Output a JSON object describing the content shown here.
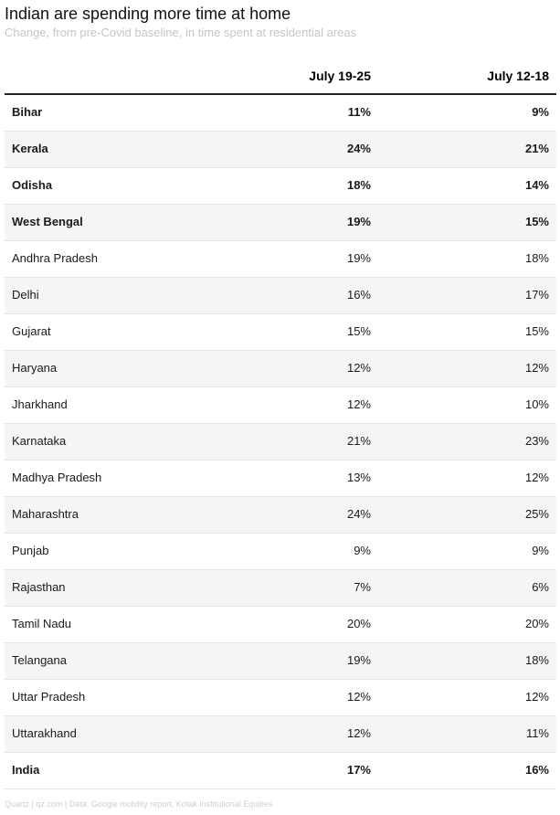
{
  "title": "Indian are spending more time at home",
  "subtitle": "Change, from pre-Covid baseline, in time spent at residential areas",
  "footer": "Quartz | qz.com | Data: Google mobility report, Kotak Institutional Equities",
  "chart_data": {
    "type": "table",
    "columns": [
      "",
      "July 19-25",
      "July 12-18"
    ],
    "rows": [
      {
        "state": "Bihar",
        "v1": "11%",
        "v2": "9%",
        "bold": true
      },
      {
        "state": "Kerala",
        "v1": "24%",
        "v2": "21%",
        "bold": true
      },
      {
        "state": "Odisha",
        "v1": "18%",
        "v2": "14%",
        "bold": true
      },
      {
        "state": "West Bengal",
        "v1": "19%",
        "v2": "15%",
        "bold": true
      },
      {
        "state": "Andhra Pradesh",
        "v1": "19%",
        "v2": "18%",
        "bold": false
      },
      {
        "state": "Delhi",
        "v1": "16%",
        "v2": "17%",
        "bold": false
      },
      {
        "state": "Gujarat",
        "v1": "15%",
        "v2": "15%",
        "bold": false
      },
      {
        "state": "Haryana",
        "v1": "12%",
        "v2": "12%",
        "bold": false
      },
      {
        "state": "Jharkhand",
        "v1": "12%",
        "v2": "10%",
        "bold": false
      },
      {
        "state": "Karnataka",
        "v1": "21%",
        "v2": "23%",
        "bold": false
      },
      {
        "state": "Madhya Pradesh",
        "v1": "13%",
        "v2": "12%",
        "bold": false
      },
      {
        "state": "Maharashtra",
        "v1": "24%",
        "v2": "25%",
        "bold": false
      },
      {
        "state": "Punjab",
        "v1": "9%",
        "v2": "9%",
        "bold": false
      },
      {
        "state": "Rajasthan",
        "v1": "7%",
        "v2": "6%",
        "bold": false
      },
      {
        "state": "Tamil Nadu",
        "v1": "20%",
        "v2": "20%",
        "bold": false
      },
      {
        "state": "Telangana",
        "v1": "19%",
        "v2": "18%",
        "bold": false
      },
      {
        "state": "Uttar Pradesh",
        "v1": "12%",
        "v2": "12%",
        "bold": false
      },
      {
        "state": "Uttarakhand",
        "v1": "12%",
        "v2": "11%",
        "bold": false
      },
      {
        "state": "India",
        "v1": "17%",
        "v2": "16%",
        "bold": true
      }
    ]
  }
}
